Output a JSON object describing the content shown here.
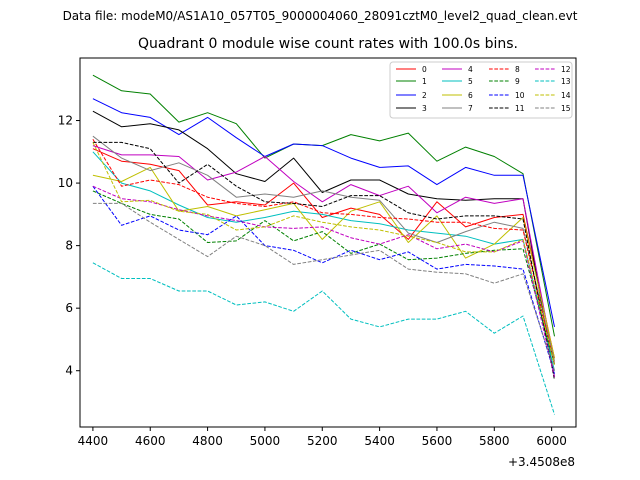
{
  "chart_data": {
    "type": "line",
    "suptitle": "Data file: modeM0/AS1A10_057T05_9000004060_28091cztM0_level2_quad_clean.evt",
    "title": "Quadrant 0 module wise count rates with 100.0s bins.",
    "xlabel": "",
    "ylabel": "",
    "x_offset_label": "+3.4508e8",
    "xlim": [
      4355,
      6085
    ],
    "ylim": [
      2.2,
      14.0
    ],
    "x_ticks": [
      4400,
      4600,
      4800,
      5000,
      5200,
      5400,
      5600,
      5800,
      6000
    ],
    "y_ticks": [
      4,
      6,
      8,
      10,
      12
    ],
    "x": [
      4400,
      4500,
      4600,
      4700,
      4800,
      4900,
      5000,
      5100,
      5200,
      5300,
      5400,
      5500,
      5600,
      5700,
      5800,
      5900,
      6010
    ],
    "legend_position": "top-right",
    "series": [
      {
        "name": "0",
        "color": "#ff0000",
        "dash": false,
        "values": [
          11.1,
          10.7,
          10.6,
          10.4,
          9.3,
          9.4,
          9.3,
          10.0,
          8.9,
          9.2,
          9.0,
          8.2,
          9.4,
          8.6,
          8.9,
          9.0,
          4.4
        ]
      },
      {
        "name": "1",
        "color": "#008000",
        "dash": false,
        "values": [
          13.45,
          12.95,
          12.85,
          11.95,
          12.25,
          11.9,
          10.8,
          11.25,
          11.2,
          11.55,
          11.35,
          11.6,
          10.7,
          11.15,
          10.85,
          10.3,
          5.1
        ]
      },
      {
        "name": "2",
        "color": "#0000ff",
        "dash": false,
        "values": [
          12.7,
          12.25,
          12.1,
          11.55,
          12.1,
          11.45,
          10.85,
          11.25,
          11.2,
          10.8,
          10.5,
          10.55,
          9.95,
          10.5,
          10.25,
          10.25,
          5.4
        ]
      },
      {
        "name": "3",
        "color": "#000000",
        "dash": false,
        "values": [
          12.3,
          11.8,
          11.9,
          11.7,
          11.1,
          10.3,
          10.05,
          10.8,
          9.7,
          10.1,
          10.1,
          9.65,
          9.5,
          9.45,
          9.5,
          9.5,
          3.8
        ]
      },
      {
        "name": "4",
        "color": "#c000c0",
        "dash": false,
        "values": [
          11.2,
          10.9,
          10.9,
          10.85,
          10.1,
          10.35,
          10.85,
          10.05,
          9.4,
          9.95,
          9.6,
          9.9,
          9.05,
          9.55,
          9.35,
          9.5,
          4.2
        ]
      },
      {
        "name": "5",
        "color": "#00bfbf",
        "dash": false,
        "values": [
          11.0,
          10.0,
          9.75,
          9.3,
          8.9,
          8.75,
          8.9,
          9.1,
          9.0,
          8.8,
          8.7,
          8.5,
          8.4,
          8.3,
          8.05,
          8.2,
          4.0
        ]
      },
      {
        "name": "6",
        "color": "#bfbf00",
        "dash": false,
        "values": [
          10.25,
          10.05,
          10.5,
          9.1,
          9.25,
          8.95,
          9.15,
          9.35,
          8.2,
          9.1,
          9.4,
          8.1,
          8.95,
          7.6,
          8.05,
          8.9,
          4.4
        ]
      },
      {
        "name": "7",
        "color": "#808080",
        "dash": false,
        "values": [
          11.5,
          10.8,
          10.4,
          10.65,
          10.25,
          9.55,
          9.65,
          9.55,
          9.75,
          9.55,
          9.45,
          8.4,
          8.1,
          8.45,
          8.75,
          8.55,
          4.3
        ]
      },
      {
        "name": "8",
        "color": "#ff0000",
        "dash": true,
        "values": [
          11.4,
          9.9,
          10.1,
          9.95,
          9.55,
          9.35,
          9.25,
          9.4,
          9.05,
          9.0,
          8.9,
          8.85,
          8.75,
          8.75,
          8.55,
          8.5,
          4.2
        ]
      },
      {
        "name": "9",
        "color": "#008000",
        "dash": true,
        "values": [
          9.75,
          9.35,
          9.0,
          8.85,
          8.1,
          8.15,
          8.8,
          8.15,
          8.45,
          7.75,
          8.05,
          7.55,
          7.6,
          7.75,
          7.85,
          7.9,
          4.2
        ]
      },
      {
        "name": "10",
        "color": "#0000ff",
        "dash": true,
        "values": [
          9.9,
          8.65,
          8.95,
          8.5,
          8.35,
          8.95,
          8.0,
          7.85,
          7.45,
          7.85,
          7.55,
          7.8,
          7.25,
          7.4,
          7.35,
          7.25,
          3.9
        ]
      },
      {
        "name": "11",
        "color": "#000000",
        "dash": true,
        "values": [
          11.3,
          11.3,
          11.1,
          10.0,
          10.6,
          9.9,
          9.4,
          9.35,
          9.25,
          9.6,
          9.6,
          9.05,
          8.85,
          8.95,
          8.95,
          8.85,
          3.7
        ]
      },
      {
        "name": "12",
        "color": "#c000c0",
        "dash": true,
        "values": [
          9.9,
          9.5,
          9.4,
          9.15,
          8.95,
          8.8,
          8.6,
          8.55,
          8.6,
          8.25,
          8.05,
          8.35,
          7.9,
          8.05,
          7.8,
          8.15,
          3.8
        ]
      },
      {
        "name": "13",
        "color": "#00bfbf",
        "dash": true,
        "values": [
          7.45,
          6.95,
          6.95,
          6.55,
          6.55,
          6.1,
          6.2,
          5.9,
          6.55,
          5.65,
          5.4,
          5.65,
          5.65,
          5.9,
          5.2,
          5.75,
          2.6
        ]
      },
      {
        "name": "14",
        "color": "#bfbf00",
        "dash": true,
        "values": [
          11.3,
          9.4,
          9.45,
          9.1,
          9.0,
          8.5,
          8.6,
          8.95,
          8.75,
          8.6,
          8.5,
          8.3,
          8.1,
          7.8,
          7.8,
          8.2,
          4.2
        ]
      },
      {
        "name": "15",
        "color": "#808080",
        "dash": true,
        "values": [
          9.35,
          9.35,
          8.75,
          8.2,
          7.65,
          8.3,
          8.0,
          7.4,
          7.55,
          7.7,
          7.85,
          7.25,
          7.15,
          7.1,
          6.8,
          7.1,
          4.0
        ]
      }
    ]
  }
}
